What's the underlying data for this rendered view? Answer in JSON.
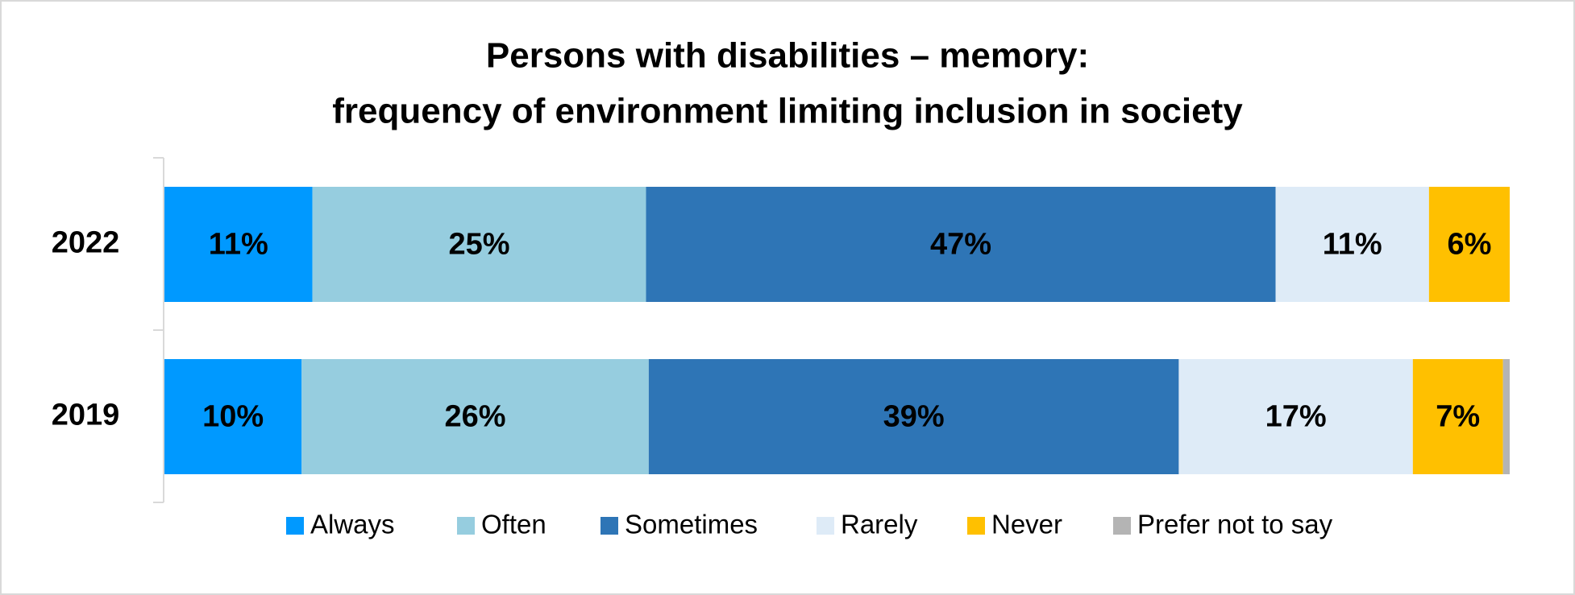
{
  "chart_data": {
    "type": "stacked-bar-horizontal",
    "title": [
      "Persons with disabilities – memory:",
      "frequency of environment limiting inclusion in society"
    ],
    "categories": [
      "2022",
      "2019"
    ],
    "xlim": [
      0,
      100
    ],
    "legend": "bottom",
    "series": [
      {
        "name": "Always",
        "color": "#0099ff",
        "values": [
          11,
          10.2
        ],
        "value_labels": [
          "11%",
          "10%"
        ]
      },
      {
        "name": "Often",
        "color": "#96cddf",
        "values": [
          24.8,
          25.8
        ],
        "value_labels": [
          "25%",
          "26%"
        ]
      },
      {
        "name": "Sometimes",
        "color": "#2e75b6",
        "values": [
          46.8,
          39.4
        ],
        "value_labels": [
          "47%",
          "39%"
        ]
      },
      {
        "name": "Rarely",
        "color": "#deebf7",
        "values": [
          11.4,
          17.4
        ],
        "value_labels": [
          "11%",
          "17%"
        ]
      },
      {
        "name": "Never",
        "color": "#ffc000",
        "values": [
          6,
          6.7
        ],
        "value_labels": [
          "6%",
          "7%"
        ]
      },
      {
        "name": "Prefer not to say",
        "color": "#b4b4b4",
        "values": [
          0,
          0.5
        ]
      }
    ]
  }
}
